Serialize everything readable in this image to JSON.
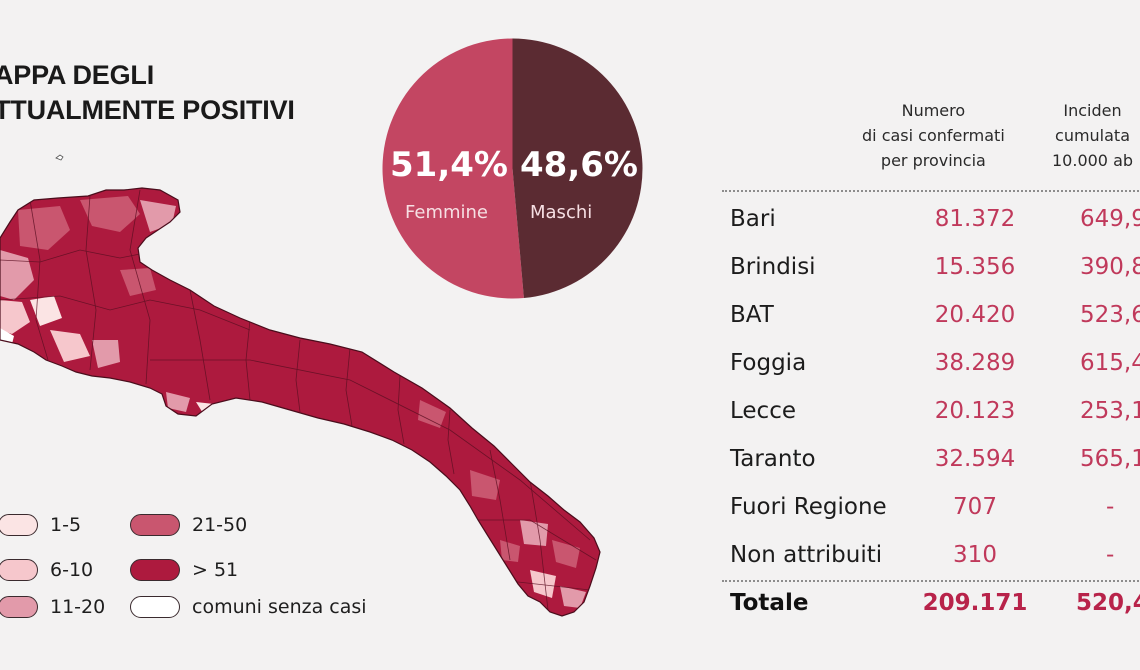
{
  "map": {
    "title_line1": "APPA DEGLI",
    "title_line2": "TTUALMENTE POSITIVI",
    "legend": [
      {
        "label": "1-5",
        "color": "#fbe4e4"
      },
      {
        "label": "6-10",
        "color": "#f6c7cc"
      },
      {
        "label": "11-20",
        "color": "#e29aaa"
      },
      {
        "label": "21-50",
        "color": "#c9566f"
      },
      {
        "label": "> 51",
        "color": "#ad1a3e"
      },
      {
        "label": "comuni senza casi",
        "color": "#ffffff"
      }
    ]
  },
  "gender": {
    "female_pct": "51,4%",
    "female_label": "Femmine",
    "female_color": "#c34662",
    "male_pct": "48,6%",
    "male_label": "Maschi",
    "male_color": "#5b2b32"
  },
  "table": {
    "col1": [
      "Numero",
      "di casi confermati",
      "per provincia"
    ],
    "col2": [
      "Inciden",
      "cumulata",
      "10.000 ab"
    ],
    "rows": [
      {
        "name": "Bari",
        "cases": "81.372",
        "incidence": "649,9"
      },
      {
        "name": "Brindisi",
        "cases": "15.356",
        "incidence": "390,8"
      },
      {
        "name": "BAT",
        "cases": "20.420",
        "incidence": "523,6"
      },
      {
        "name": "Foggia",
        "cases": "38.289",
        "incidence": "615,4"
      },
      {
        "name": "Lecce",
        "cases": "20.123",
        "incidence": "253,1"
      },
      {
        "name": "Taranto",
        "cases": "32.594",
        "incidence": "565,1"
      },
      {
        "name": "Fuori Regione",
        "cases": "707",
        "incidence": "-"
      },
      {
        "name": "Non attribuiti",
        "cases": "310",
        "incidence": "-"
      }
    ],
    "total": {
      "name": "Totale",
      "cases": "209.171",
      "incidence": "520,4"
    }
  }
}
